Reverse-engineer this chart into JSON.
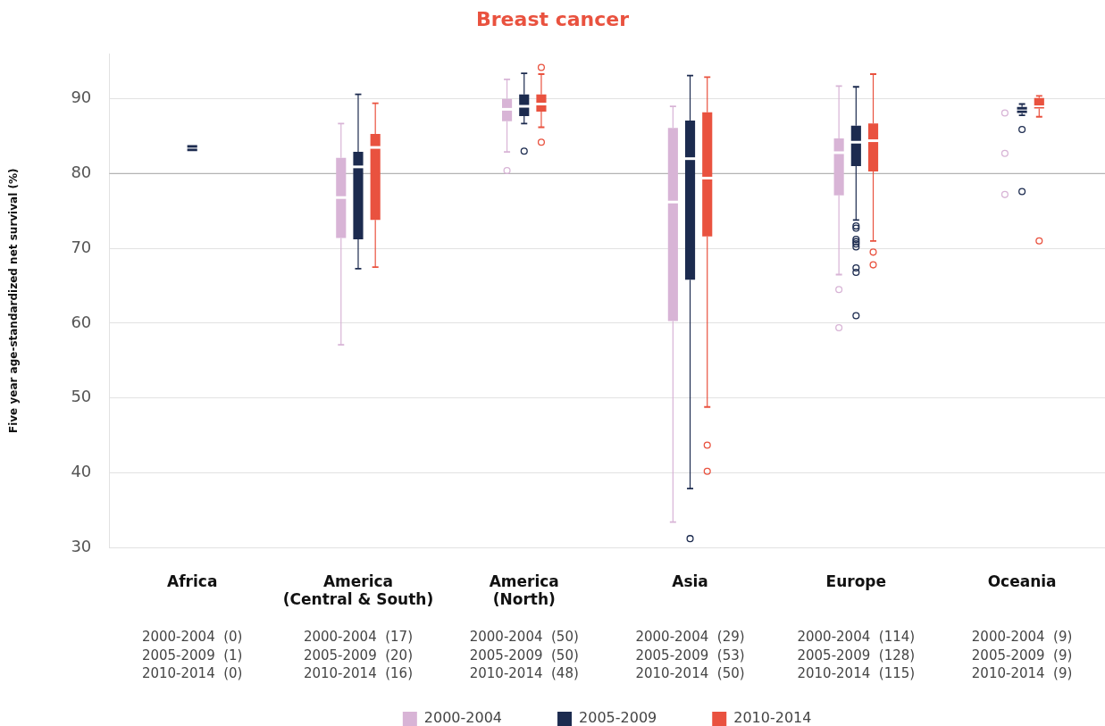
{
  "chart_data": {
    "type": "box",
    "title": "Breast cancer",
    "ylabel": "Five year age-standardized net survival (%)",
    "categories": [
      "Africa",
      "America\n(Central & South)",
      "America\n(North)",
      "Asia",
      "Europe",
      "Oceania"
    ],
    "ylim": [
      30,
      96
    ],
    "yticks": [
      30,
      40,
      50,
      60,
      70,
      80,
      90
    ],
    "grid": "y",
    "legend": "bottom",
    "ref_lines": [
      {
        "axis": "y",
        "value": 80,
        "color": "#b3b3b3"
      }
    ],
    "series": [
      {
        "name": "2000-2004",
        "color": "#d8b4d6",
        "boxes": [
          null,
          {
            "low": 57.1,
            "q1": 71.4,
            "median": 76.8,
            "q3": 82.1,
            "high": 86.7
          },
          {
            "low": 82.9,
            "q1": 87.0,
            "median": 88.6,
            "q3": 90.0,
            "high": 92.6,
            "outliers": [
              80.4
            ]
          },
          {
            "low": 33.4,
            "q1": 60.3,
            "median": 76.2,
            "q3": 86.1,
            "high": 89.0
          },
          {
            "low": 66.5,
            "q1": 77.1,
            "median": 82.8,
            "q3": 84.7,
            "high": 91.7,
            "outliers": [
              64.5,
              59.4
            ]
          },
          null
        ]
      },
      {
        "name": "2005-2009",
        "color": "#1c2b4f",
        "boxes": [
          {
            "low": 83.0,
            "q1": 83.0,
            "median": 83.4,
            "q3": 83.8,
            "high": 83.8
          },
          {
            "low": 67.3,
            "q1": 71.2,
            "median": 80.9,
            "q3": 82.9,
            "high": 90.6
          },
          {
            "low": 86.7,
            "q1": 87.7,
            "median": 89.0,
            "q3": 90.6,
            "high": 93.4,
            "outliers": [
              83.0
            ]
          },
          {
            "low": 37.9,
            "q1": 65.8,
            "median": 82.0,
            "q3": 87.1,
            "high": 93.1,
            "outliers": [
              31.2
            ]
          },
          {
            "low": 73.8,
            "q1": 81.0,
            "median": 84.2,
            "q3": 86.4,
            "high": 91.6,
            "outliers": [
              73.0,
              72.7,
              71.2,
              70.9,
              70.6,
              70.2,
              67.4,
              66.8,
              61.0
            ]
          },
          {
            "low": 87.8,
            "q1": 88.1,
            "median": 88.5,
            "q3": 88.9,
            "high": 89.3,
            "outliers": [
              85.9,
              77.6
            ]
          }
        ]
      },
      {
        "name": "2010-2014",
        "color": "#e9523f",
        "boxes": [
          null,
          {
            "low": 67.5,
            "q1": 73.8,
            "median": 83.5,
            "q3": 85.3,
            "high": 89.4
          },
          {
            "low": 86.2,
            "q1": 88.3,
            "median": 89.3,
            "q3": 90.6,
            "high": 93.3,
            "outliers": [
              94.2,
              84.2
            ]
          },
          {
            "low": 48.8,
            "q1": 71.6,
            "median": 79.4,
            "q3": 88.2,
            "high": 92.9,
            "outliers": [
              43.7,
              40.2
            ]
          },
          {
            "low": 71.0,
            "q1": 80.3,
            "median": 84.4,
            "q3": 86.7,
            "high": 93.3,
            "outliers": [
              69.5,
              67.8
            ]
          },
          {
            "low": 87.6,
            "q1": 88.7,
            "median": 89.0,
            "q3": 90.1,
            "high": 90.4,
            "outliers": [
              71.0
            ]
          }
        ]
      },
      {
        "type": "scatter",
        "color": "#d8b4d6",
        "marker": "circle",
        "x": [
          "Oceania",
          "Oceania",
          "Oceania"
        ],
        "values": [
          88.1,
          82.7,
          77.2
        ]
      }
    ],
    "annotations": [
      "2000-2004  (0)\n2005-2009  (1)\n2010-2014  (0)",
      "2000-2004  (17)\n2005-2009  (20)\n2010-2014  (16)",
      "2000-2004  (50)\n2005-2009  (50)\n2010-2014  (48)",
      "2000-2004  (29)\n2005-2009  (53)\n2010-2014  (50)",
      "2000-2004  (114)\n2005-2009  (128)\n2010-2014  (115)",
      "2000-2004  (9)\n2005-2009  (9)\n2010-2014  (9)"
    ]
  }
}
